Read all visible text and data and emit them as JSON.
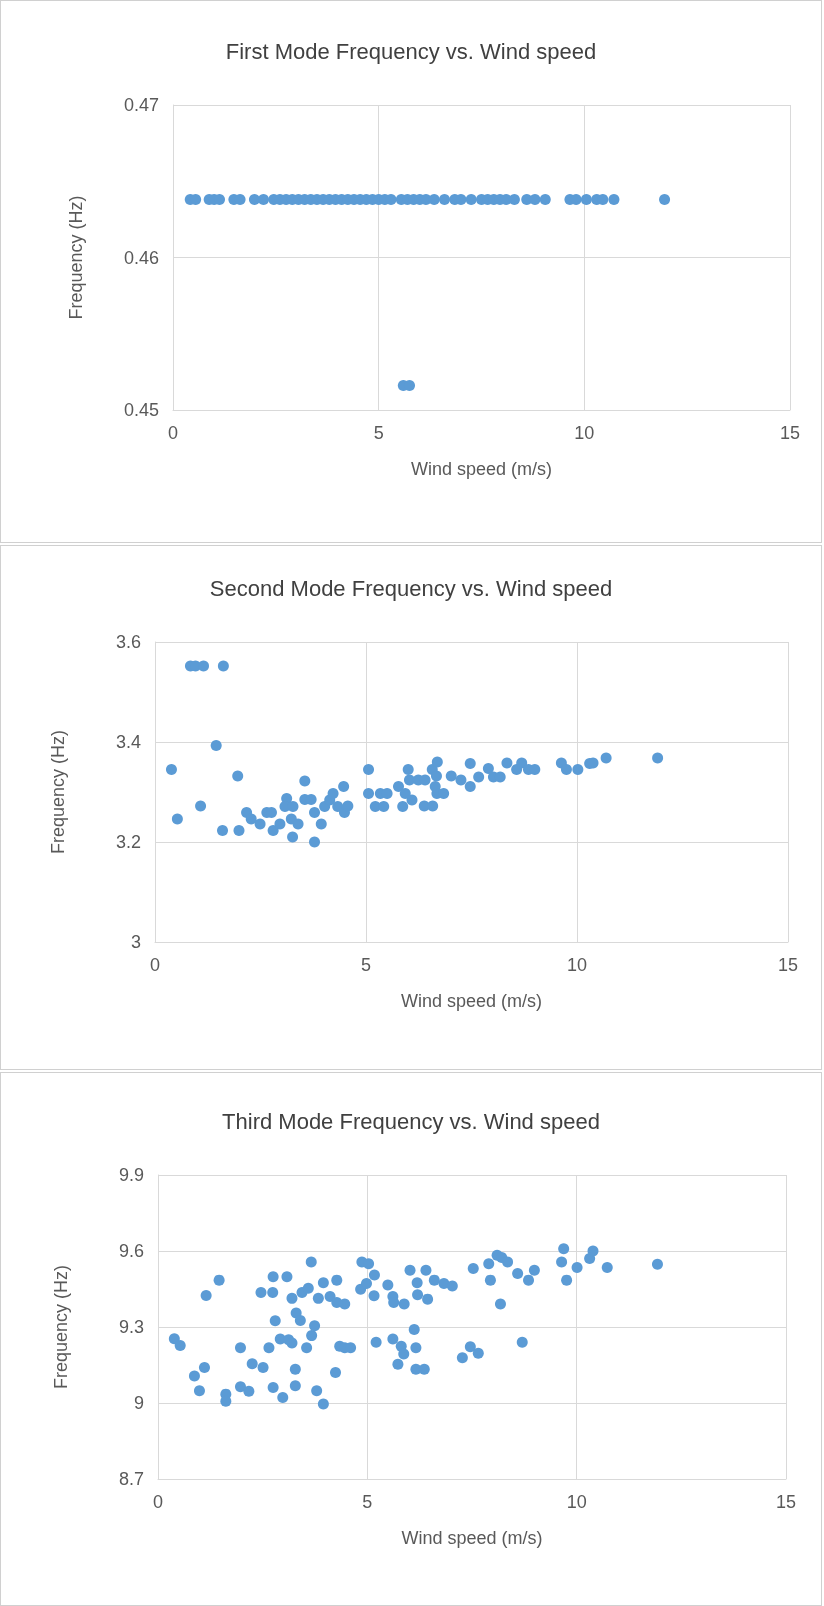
{
  "chart_data": [
    {
      "type": "scatter",
      "title": "First Mode Frequency vs. Wind speed",
      "xlabel": "Wind speed (m/s)",
      "ylabel": "Frequency (Hz)",
      "color": "#5b9bd5",
      "marker": "circle",
      "grid": true,
      "x": [
        0.42,
        0.55,
        0.88,
        1.0,
        1.13,
        1.48,
        1.63,
        1.98,
        2.2,
        2.45,
        2.6,
        2.75,
        2.9,
        3.05,
        3.2,
        3.35,
        3.5,
        3.65,
        3.8,
        3.95,
        4.1,
        4.25,
        4.4,
        4.55,
        4.7,
        4.85,
        5.0,
        5.15,
        5.3,
        5.55,
        5.7,
        5.85,
        6.0,
        6.15,
        6.35,
        6.6,
        6.85,
        7.0,
        7.25,
        7.5,
        7.65,
        7.8,
        7.95,
        8.1,
        8.3,
        8.6,
        8.8,
        9.05,
        9.65,
        9.8,
        10.05,
        10.3,
        10.45,
        10.72,
        11.95,
        5.6,
        5.75
      ],
      "values": [
        0.4638,
        0.4638,
        0.4638,
        0.4638,
        0.4638,
        0.4638,
        0.4638,
        0.4638,
        0.4638,
        0.4638,
        0.4638,
        0.4638,
        0.4638,
        0.4638,
        0.4638,
        0.4638,
        0.4638,
        0.4638,
        0.4638,
        0.4638,
        0.4638,
        0.4638,
        0.4638,
        0.4638,
        0.4638,
        0.4638,
        0.4638,
        0.4638,
        0.4638,
        0.4638,
        0.4638,
        0.4638,
        0.4638,
        0.4638,
        0.4638,
        0.4638,
        0.4638,
        0.4638,
        0.4638,
        0.4638,
        0.4638,
        0.4638,
        0.4638,
        0.4638,
        0.4638,
        0.4638,
        0.4638,
        0.4638,
        0.4638,
        0.4638,
        0.4638,
        0.4638,
        0.4638,
        0.4638,
        0.4638,
        0.4516,
        0.4516
      ],
      "xlim": [
        0,
        15
      ],
      "xticks": [
        0,
        5,
        10,
        15
      ],
      "ylim": [
        0.45,
        0.47
      ],
      "yticks": [
        0.45,
        0.46,
        0.47
      ]
    },
    {
      "type": "scatter",
      "title": "Second Mode Frequency vs. Wind speed",
      "xlabel": "Wind speed (m/s)",
      "ylabel": "Frequency (Hz)",
      "color": "#5b9bd5",
      "marker": "circle",
      "grid": true,
      "x": [
        0.84,
        0.96,
        1.15,
        1.62,
        1.45,
        0.39,
        0.53,
        1.08,
        1.96,
        1.6,
        1.99,
        2.17,
        2.28,
        2.49,
        2.65,
        2.76,
        2.8,
        2.96,
        3.12,
        3.08,
        3.27,
        3.23,
        3.26,
        3.39,
        3.55,
        3.55,
        3.7,
        3.78,
        3.94,
        3.78,
        4.02,
        4.14,
        4.22,
        4.33,
        4.47,
        4.49,
        4.57,
        5.06,
        5.06,
        5.22,
        5.34,
        5.42,
        5.5,
        5.77,
        5.87,
        6.0,
        6.03,
        5.93,
        6.09,
        6.24,
        6.4,
        6.38,
        6.58,
        6.64,
        6.68,
        6.57,
        6.69,
        6.67,
        6.84,
        7.02,
        7.25,
        7.47,
        7.47,
        7.67,
        7.9,
        8.02,
        8.18,
        8.34,
        8.57,
        8.69,
        8.85,
        9.0,
        9.63,
        9.75,
        10.02,
        10.3,
        10.38,
        10.69,
        11.91
      ],
      "values": [
        3.552,
        3.552,
        3.552,
        3.552,
        3.393,
        3.345,
        3.246,
        3.272,
        3.332,
        3.223,
        3.223,
        3.259,
        3.246,
        3.236,
        3.259,
        3.259,
        3.223,
        3.236,
        3.287,
        3.271,
        3.271,
        3.246,
        3.21,
        3.236,
        3.322,
        3.285,
        3.285,
        3.2,
        3.236,
        3.259,
        3.271,
        3.284,
        3.297,
        3.271,
        3.311,
        3.259,
        3.272,
        3.345,
        3.297,
        3.271,
        3.297,
        3.271,
        3.297,
        3.311,
        3.271,
        3.345,
        3.324,
        3.297,
        3.284,
        3.324,
        3.324,
        3.272,
        3.272,
        3.311,
        3.297,
        3.345,
        3.36,
        3.332,
        3.297,
        3.332,
        3.324,
        3.357,
        3.311,
        3.33,
        3.347,
        3.33,
        3.33,
        3.358,
        3.345,
        3.358,
        3.345,
        3.345,
        3.358,
        3.345,
        3.345,
        3.357,
        3.358,
        3.368,
        3.368
      ],
      "xlim": [
        0,
        15
      ],
      "xticks": [
        0,
        5,
        10,
        15
      ],
      "ylim": [
        3,
        3.6
      ],
      "yticks": [
        3,
        3.2,
        3.4,
        3.6
      ]
    },
    {
      "type": "scatter",
      "title": "Third Mode Frequency vs. Wind speed",
      "xlabel": "Wind speed (m/s)",
      "ylabel": "Frequency (Hz)",
      "color": "#5b9bd5",
      "marker": "circle",
      "grid": true,
      "x": [
        0.39,
        0.53,
        0.87,
        1.11,
        0.99,
        1.15,
        1.46,
        1.62,
        1.62,
        1.97,
        1.97,
        2.17,
        2.25,
        2.51,
        2.46,
        2.74,
        2.75,
        2.8,
        2.65,
        2.75,
        2.98,
        2.92,
        3.08,
        3.12,
        3.2,
        3.28,
        3.28,
        3.2,
        3.3,
        3.4,
        3.44,
        3.59,
        3.66,
        3.67,
        3.74,
        3.55,
        3.79,
        3.95,
        3.83,
        3.95,
        4.11,
        4.27,
        4.24,
        4.34,
        4.46,
        4.6,
        4.46,
        4.27,
        4.87,
        5.03,
        4.84,
        4.98,
        5.17,
        5.16,
        5.21,
        5.49,
        5.61,
        5.63,
        5.88,
        5.61,
        5.81,
        5.87,
        5.73,
        6.12,
        6.16,
        6.02,
        6.19,
        6.4,
        6.2,
        6.44,
        6.16,
        6.36,
        6.6,
        6.83,
        7.03,
        7.27,
        7.46,
        7.65,
        7.53,
        7.9,
        7.94,
        8.1,
        8.21,
        8.35,
        8.59,
        8.85,
        8.99,
        8.18,
        8.7,
        9.64,
        9.69,
        9.76,
        10.01,
        10.31,
        10.39,
        10.73,
        11.93
      ],
      "values": [
        9.254,
        9.227,
        9.107,
        9.14,
        9.048,
        9.424,
        9.485,
        9.035,
        9.007,
        9.218,
        9.064,
        9.046,
        9.155,
        9.14,
        9.436,
        9.436,
        9.498,
        9.325,
        9.218,
        9.061,
        9.022,
        9.253,
        9.498,
        9.25,
        9.237,
        9.133,
        9.068,
        9.413,
        9.355,
        9.326,
        9.436,
        9.453,
        9.557,
        9.266,
        9.305,
        9.218,
        9.048,
        8.996,
        9.413,
        9.475,
        9.42,
        9.485,
        9.12,
        9.224,
        9.218,
        9.218,
        9.391,
        9.397,
        9.557,
        9.55,
        9.449,
        9.472,
        9.505,
        9.423,
        9.24,
        9.466,
        9.42,
        9.397,
        9.391,
        9.253,
        9.224,
        9.193,
        9.153,
        9.29,
        9.218,
        9.524,
        9.475,
        9.524,
        9.427,
        9.41,
        9.133,
        9.133,
        9.485,
        9.472,
        9.462,
        9.179,
        9.222,
        9.196,
        9.531,
        9.55,
        9.485,
        9.583,
        9.574,
        9.557,
        9.511,
        9.485,
        9.524,
        9.391,
        9.24,
        9.557,
        9.609,
        9.485,
        9.535,
        9.57,
        9.6,
        9.535,
        9.548
      ],
      "xlim": [
        0,
        15
      ],
      "xticks": [
        0,
        5,
        10,
        15
      ],
      "ylim": [
        8.7,
        9.9
      ],
      "yticks": [
        8.7,
        9,
        9.3,
        9.6,
        9.9
      ]
    }
  ]
}
